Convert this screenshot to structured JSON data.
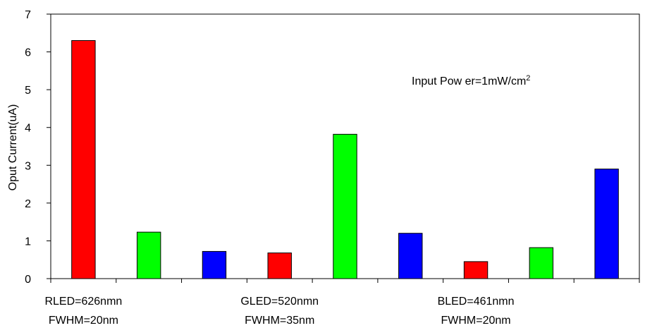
{
  "chart_data": {
    "type": "bar",
    "title": "",
    "ylabel": "Oput Current(uA)",
    "xlabel": "",
    "ylim": [
      0,
      7
    ],
    "yticks": [
      0,
      1,
      2,
      3,
      4,
      5,
      6,
      7
    ],
    "grid": false,
    "legend": "none",
    "groups": [
      {
        "line1": "RLED=626nmn",
        "line2": "FWHM=20nm",
        "values": [
          6.3,
          1.23,
          0.72
        ]
      },
      {
        "line1": "GLED=520nmn",
        "line2": "FWHM=35nm",
        "values": [
          0.68,
          3.82,
          1.2
        ]
      },
      {
        "line1": "BLED=461nmn",
        "line2": "FWHM=20nm",
        "values": [
          0.45,
          0.82,
          2.9
        ]
      }
    ],
    "bar_colors": [
      "#ff0000",
      "#00ff00",
      "#0000ff"
    ],
    "annotation": {
      "text": "Input Pow er=1mW/cm",
      "superscript": "2"
    }
  }
}
